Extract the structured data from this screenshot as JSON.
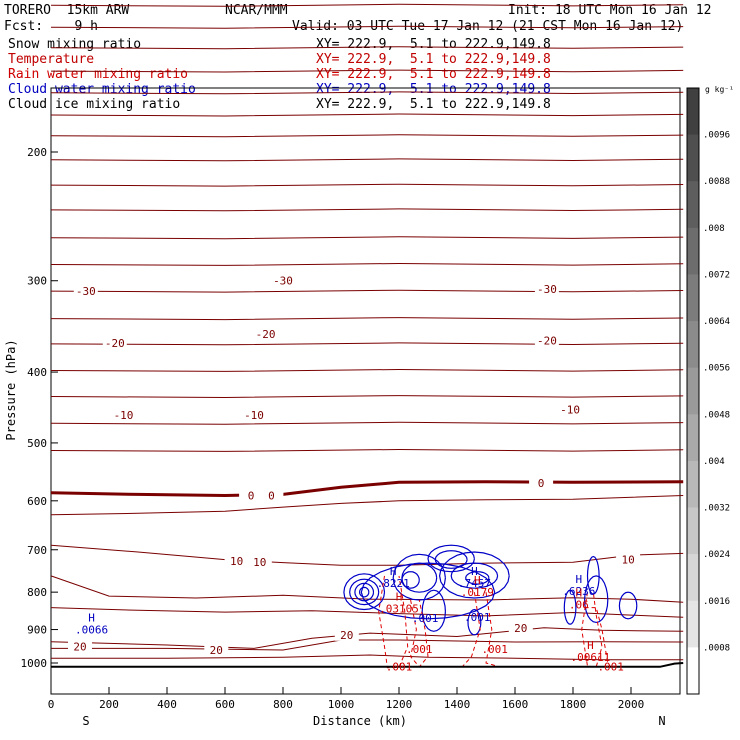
{
  "header": {
    "model": "TORERO  15km ARW",
    "org": "NCAR/MMM",
    "init": "Init: 18 UTC Mon 16 Jan 12",
    "fcst": "Fcst:    9 h",
    "valid": "Valid: 03 UTC Tue 17 Jan 12 (21 CST Mon 16 Jan 12)"
  },
  "fields": [
    {
      "name": "Snow mixing ratio",
      "xy": "XY= 222.9,  5.1 to 222.9,149.8",
      "color": "#000000"
    },
    {
      "name": "Temperature",
      "xy": "XY= 222.9,  5.1 to 222.9,149.8",
      "color": "#c00000"
    },
    {
      "name": "Rain water mixing ratio",
      "xy": "XY= 222.9,  5.1 to 222.9,149.8",
      "color": "#d00000"
    },
    {
      "name": "Cloud water mixing ratio",
      "xy": "XY= 222.9,  5.1 to 222.9,149.8",
      "color": "#0000c0"
    },
    {
      "name": "Cloud ice mixing ratio",
      "xy": "XY= 222.9,  5.1 to 222.9,149.8",
      "color": "#000000"
    }
  ],
  "chart_data": {
    "type": "cross-section",
    "xlabel": "Distance (km)",
    "ylabel": "Pressure (hPa)",
    "xlim": [
      0,
      2180
    ],
    "ylim": [
      150,
      1050
    ],
    "y_scale": "log",
    "x_ticks": [
      0,
      200,
      400,
      600,
      800,
      1000,
      1200,
      1400,
      1600,
      1800,
      2000
    ],
    "y_ticks": [
      200,
      300,
      400,
      500,
      600,
      700,
      800,
      900,
      1000
    ],
    "x_end_labels": {
      "left": "S",
      "right": "N"
    },
    "colorbar": {
      "unit": "g kg⁻¹",
      "ticks": [
        ".0096",
        ".0088",
        ".008",
        ".0072",
        ".0064",
        ".0056",
        ".0048",
        ".004",
        ".0032",
        ".0024",
        ".0016",
        ".0008"
      ],
      "shades": [
        "#404040",
        "#4f4f4f",
        "#5e5e5e",
        "#6d6d6d",
        "#7c7c7c",
        "#8b8b8b",
        "#9a9a9a",
        "#a9a9a9",
        "#b8b8b8",
        "#c7c7c7",
        "#d6d6d6",
        "#e5e5e5",
        "#ffffff"
      ]
    },
    "temperature_contour_labels": [
      {
        "value": "-30",
        "x": 120,
        "p": 310
      },
      {
        "value": "-30",
        "x": 800,
        "p": 300
      },
      {
        "value": "-30",
        "x": 1710,
        "p": 308
      },
      {
        "value": "-20",
        "x": 220,
        "p": 365
      },
      {
        "value": "-20",
        "x": 740,
        "p": 355
      },
      {
        "value": "-20",
        "x": 1710,
        "p": 362
      },
      {
        "value": "-10",
        "x": 250,
        "p": 458
      },
      {
        "value": "-10",
        "x": 700,
        "p": 458
      },
      {
        "value": "-10",
        "x": 1790,
        "p": 450
      },
      {
        "value": "0",
        "x": 690,
        "p": 590
      },
      {
        "value": "0",
        "x": 760,
        "p": 590
      },
      {
        "value": "0",
        "x": 1690,
        "p": 567
      },
      {
        "value": "10",
        "x": 640,
        "p": 725
      },
      {
        "value": "10",
        "x": 720,
        "p": 727
      },
      {
        "value": "10",
        "x": 1990,
        "p": 722
      },
      {
        "value": "20",
        "x": 100,
        "p": 950
      },
      {
        "value": "20",
        "x": 570,
        "p": 960
      },
      {
        "value": "20",
        "x": 1020,
        "p": 915
      },
      {
        "value": "20",
        "x": 1620,
        "p": 895
      }
    ],
    "extrema_labels": [
      {
        "kind": "H",
        "value": ".0066",
        "x": 140,
        "p": 902,
        "color": "#0000c0"
      },
      {
        "kind": "H",
        "value": ".8221",
        "x": 1180,
        "p": 780,
        "color": "#0000c0"
      },
      {
        "kind": "H",
        "value": ".7457",
        "x": 1460,
        "p": 780,
        "color": "#0000c0"
      },
      {
        "kind": "H",
        "value": ".6236",
        "x": 1820,
        "p": 800,
        "color": "#0000c0"
      },
      {
        "kind": "H",
        "value": ".03105",
        "x": 1200,
        "p": 845,
        "color": "#d00000"
      },
      {
        "kind": "H",
        "value": ".0179",
        "x": 1470,
        "p": 802,
        "color": "#d00000"
      },
      {
        "kind": "H",
        "value": ".06",
        "x": 1820,
        "p": 835,
        "color": "#d00000"
      },
      {
        "kind": "H",
        "value": ".00611",
        "x": 1860,
        "p": 985,
        "color": "#d00000"
      },
      {
        "kind": "",
        "value": ".001",
        "x": 1290,
        "p": 870,
        "color": "#0000c0"
      },
      {
        "kind": "",
        "value": ".001",
        "x": 1470,
        "p": 868,
        "color": "#0000c0"
      },
      {
        "kind": "",
        "value": ".001",
        "x": 1270,
        "p": 960,
        "color": "#d00000"
      },
      {
        "kind": "",
        "value": ".001",
        "x": 1530,
        "p": 960,
        "color": "#d00000"
      },
      {
        "kind": "",
        "value": ".001",
        "x": 1200,
        "p": 1015,
        "color": "#d00000"
      },
      {
        "kind": "",
        "value": ".001",
        "x": 1930,
        "p": 1015,
        "color": "#d00000"
      }
    ]
  }
}
